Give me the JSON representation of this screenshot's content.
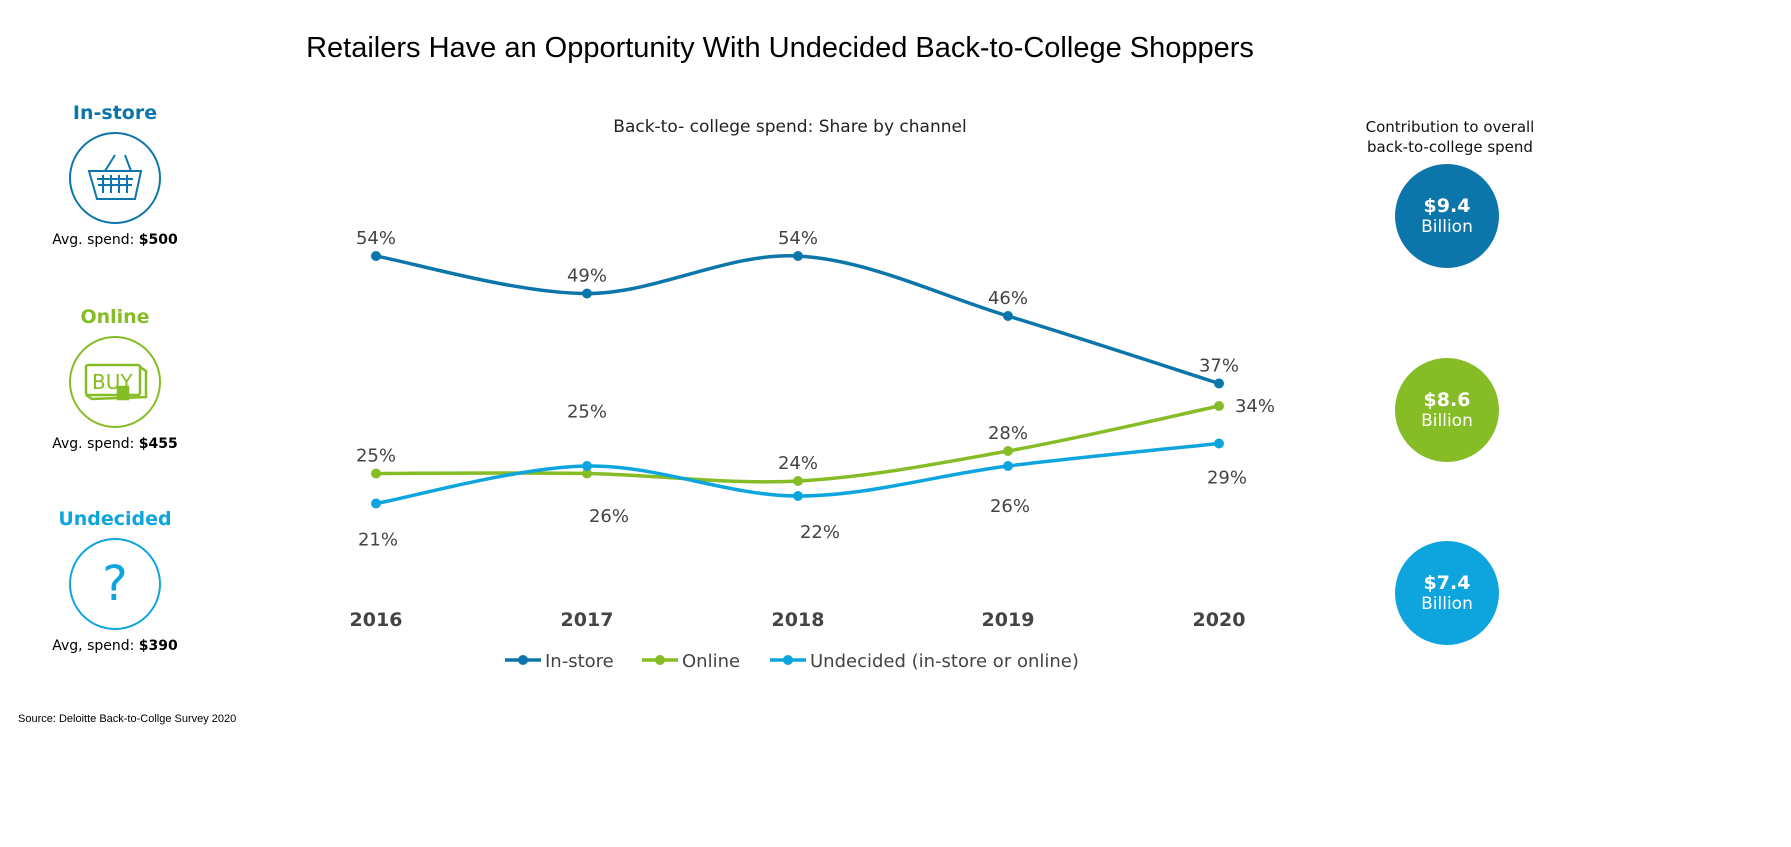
{
  "title": "Retailers Have an Opportunity With Undecided Back-to-College Shoppers",
  "channels": [
    {
      "name": "In-store",
      "icon": "basket-icon",
      "spend_label": "Avg. spend:",
      "spend_value": "$500",
      "color": "#0C76AA"
    },
    {
      "name": "Online",
      "icon": "buy-button-icon",
      "spend_label": "Avg. spend:",
      "spend_value": "$455",
      "color": "#86BC25"
    },
    {
      "name": "Undecided",
      "icon": "question-mark-icon",
      "spend_label": "Avg, spend:",
      "spend_value": "$390",
      "color": "#0EA5DE"
    }
  ],
  "contribution": {
    "label_line1": "Contribution to overall",
    "label_line2": "back-to-college spend",
    "items": [
      {
        "amount": "$9.4",
        "unit": "Billion",
        "color": "#0C76AA"
      },
      {
        "amount": "$8.6",
        "unit": "Billion",
        "color": "#86BC25"
      },
      {
        "amount": "$7.4",
        "unit": "Billion",
        "color": "#0EA5DE"
      }
    ]
  },
  "source": "Source: Deloitte Back-to-Collge Survey 2020",
  "chart_data": {
    "type": "line",
    "title": "Back-to- college spend: Share by channel",
    "xlabel": "",
    "ylabel": "",
    "categories": [
      "2016",
      "2017",
      "2018",
      "2019",
      "2020"
    ],
    "ylim": [
      0,
      60
    ],
    "grid": false,
    "legend": "bottom",
    "series": [
      {
        "name": "In-store",
        "color": "#0C76AA",
        "values": [
          54,
          49,
          54,
          46,
          37
        ],
        "labels": [
          "54%",
          "49%",
          "54%",
          "46%",
          "37%"
        ]
      },
      {
        "name": "Online",
        "color": "#86BC25",
        "values": [
          25,
          25,
          24,
          28,
          34
        ],
        "labels": [
          "25%",
          "25%",
          "24%",
          "28%",
          "34%"
        ]
      },
      {
        "name": "Undecided (in-store or online)",
        "color": "#0EA5DE",
        "values": [
          21,
          26,
          22,
          26,
          29
        ],
        "labels": [
          "21%",
          "26%",
          "22%",
          "26%",
          "29%"
        ]
      }
    ]
  }
}
